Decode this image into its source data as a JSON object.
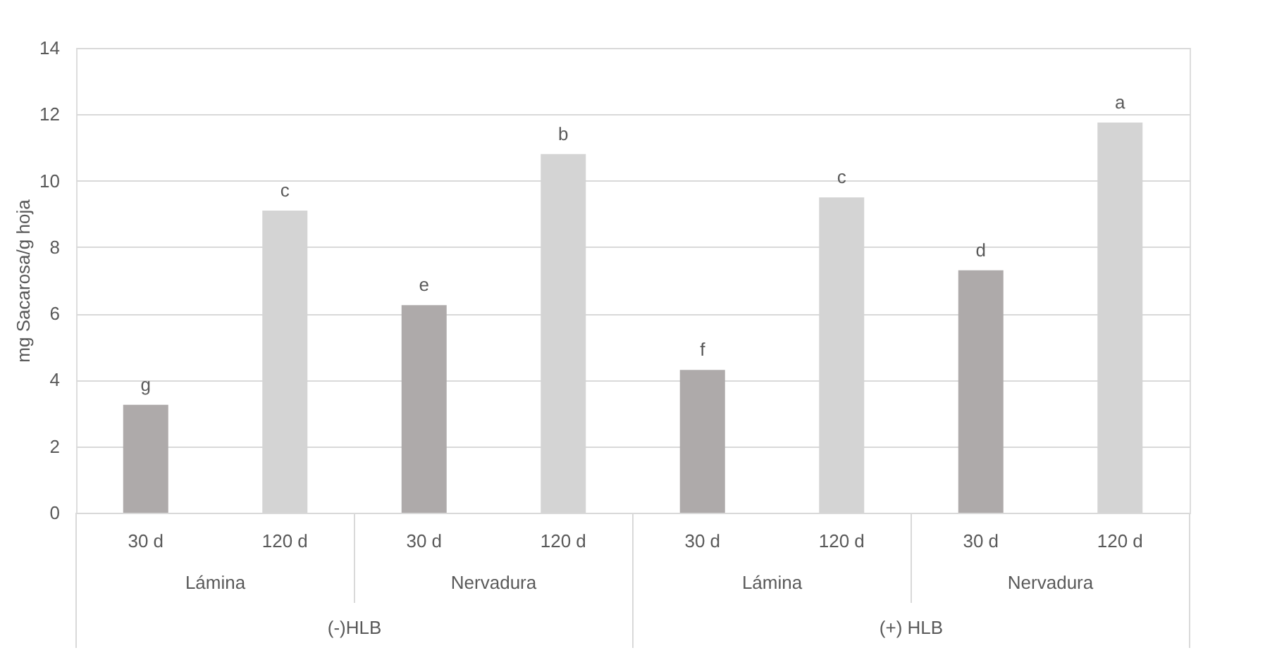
{
  "chart_data": {
    "type": "bar",
    "ylabel": "mg Sacarosa/g hoja",
    "categories": [
      "30 d",
      "120 d",
      "30 d",
      "120 d",
      "30 d",
      "120 d",
      "30 d",
      "120 d"
    ],
    "values": [
      3.25,
      9.1,
      6.25,
      10.8,
      4.3,
      9.5,
      7.3,
      11.75
    ],
    "colors": [
      "#aeaaaa",
      "#d4d4d4",
      "#aeaaaa",
      "#d4d4d4",
      "#aeaaaa",
      "#d4d4d4",
      "#aeaaaa",
      "#d4d4d4"
    ],
    "value_labels": [
      "g",
      "c",
      "e",
      "b",
      "f",
      "c",
      "d",
      "a"
    ],
    "annotations": [
      "Lámina",
      "Nervadura",
      "Lámina",
      "Nervadura",
      "(-)HLB",
      "(+) HLB"
    ],
    "ylim": [
      0,
      14
    ],
    "yticks": [
      0,
      2,
      4,
      6,
      8,
      10,
      12,
      14
    ],
    "grid": "y"
  }
}
